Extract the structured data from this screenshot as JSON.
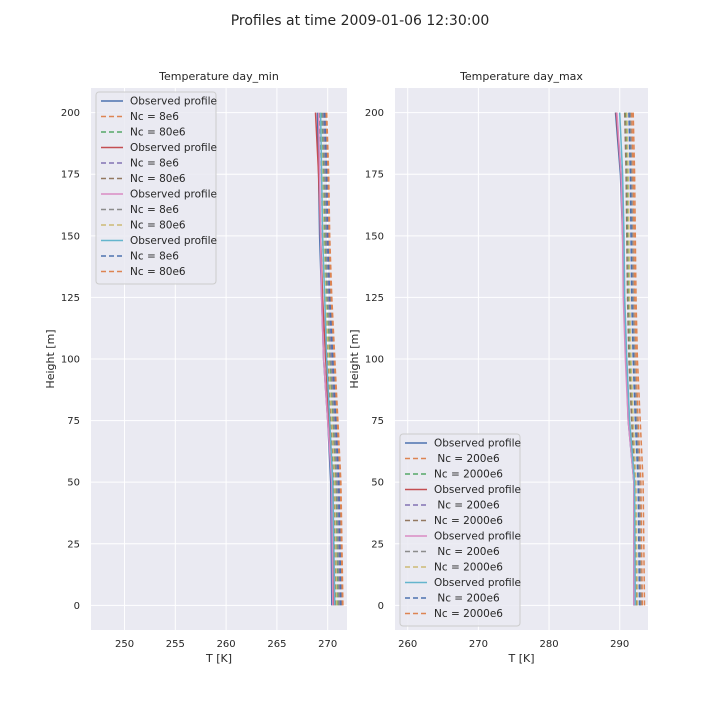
{
  "figure": {
    "title": "Profiles at time 2009-01-06 12:30:00",
    "background": "#ffffff",
    "panel_color": "#eaeaf2",
    "grid_color": "#ffffff"
  },
  "chart_data": [
    {
      "type": "line",
      "title": "Temperature day_min",
      "xlabel": "T [K]",
      "ylabel": "Height [m]",
      "xlim": [
        246.7,
        271.9
      ],
      "ylim": [
        -10,
        210
      ],
      "xticks": [
        "250",
        "255",
        "260",
        "265",
        "270"
      ],
      "yticks": [
        "0",
        "25",
        "50",
        "75",
        "100",
        "125",
        "150",
        "175",
        "200"
      ],
      "grid": true,
      "legend_position": "upper left",
      "series": [
        {
          "name": "Observed profile",
          "color": "#4c72b0",
          "dash": "solid",
          "x": [
            270.4,
            270.3,
            270.0,
            269.6,
            269.4,
            269.2,
            269.1,
            269.0
          ],
          "y": [
            0,
            50,
            75,
            100,
            125,
            150,
            175,
            200
          ]
        },
        {
          "name": "Nc = 8e6",
          "color": "#dd8452",
          "dash": "dashed",
          "x": [
            271.4,
            271.2,
            270.9,
            270.6,
            270.3,
            270.1,
            270.0,
            269.8
          ],
          "y": [
            0,
            50,
            75,
            100,
            125,
            150,
            175,
            200
          ]
        },
        {
          "name": "Nc = 80e6",
          "color": "#55a868",
          "dash": "dashed",
          "x": [
            271.0,
            270.8,
            270.5,
            270.2,
            269.9,
            269.7,
            269.6,
            269.4
          ],
          "y": [
            0,
            50,
            75,
            100,
            125,
            150,
            175,
            200
          ]
        },
        {
          "name": "Observed profile",
          "color": "#c44e52",
          "dash": "solid",
          "x": [
            270.6,
            270.5,
            270.1,
            269.8,
            269.5,
            269.3,
            269.1,
            268.8
          ],
          "y": [
            0,
            50,
            75,
            100,
            125,
            150,
            175,
            200
          ]
        },
        {
          "name": "Nc = 8e6",
          "color": "#8172b3",
          "dash": "dashed",
          "x": [
            271.2,
            271.0,
            270.7,
            270.4,
            270.1,
            269.9,
            269.8,
            269.6
          ],
          "y": [
            0,
            50,
            75,
            100,
            125,
            150,
            175,
            200
          ]
        },
        {
          "name": "Nc = 80e6",
          "color": "#937860",
          "dash": "dashed",
          "x": [
            270.8,
            270.6,
            270.3,
            270.0,
            269.7,
            269.5,
            269.4,
            269.2
          ],
          "y": [
            0,
            50,
            75,
            100,
            125,
            150,
            175,
            200
          ]
        },
        {
          "name": "Observed profile",
          "color": "#da8bc3",
          "dash": "solid",
          "x": [
            270.5,
            270.4,
            270.0,
            269.6,
            269.4,
            269.3,
            269.2,
            269.1
          ],
          "y": [
            0,
            50,
            75,
            100,
            125,
            150,
            175,
            200
          ]
        },
        {
          "name": "Nc = 8e6",
          "color": "#8c8c8c",
          "dash": "dashed",
          "x": [
            271.1,
            270.9,
            270.6,
            270.3,
            270.0,
            269.8,
            269.7,
            269.5
          ],
          "y": [
            0,
            50,
            75,
            100,
            125,
            150,
            175,
            200
          ]
        },
        {
          "name": "Nc = 80e6",
          "color": "#ccb974",
          "dash": "dashed",
          "x": [
            270.9,
            270.7,
            270.4,
            270.1,
            269.8,
            269.6,
            269.5,
            269.3
          ],
          "y": [
            0,
            50,
            75,
            100,
            125,
            150,
            175,
            200
          ]
        },
        {
          "name": "Observed profile",
          "color": "#64b5cd",
          "dash": "solid",
          "x": [
            270.7,
            270.5,
            270.2,
            269.9,
            269.7,
            269.5,
            269.4,
            269.3
          ],
          "y": [
            0,
            50,
            75,
            100,
            125,
            150,
            175,
            200
          ]
        },
        {
          "name": "Nc = 8e6",
          "color": "#4c72b0",
          "dash": "dashed",
          "x": [
            271.3,
            271.1,
            270.8,
            270.5,
            270.2,
            270.0,
            269.9,
            269.7
          ],
          "y": [
            0,
            50,
            75,
            100,
            125,
            150,
            175,
            200
          ]
        },
        {
          "name": "Nc = 80e6",
          "color": "#dd8452",
          "dash": "dashed",
          "x": [
            271.5,
            271.3,
            271.0,
            270.7,
            270.4,
            270.2,
            270.1,
            269.9
          ],
          "y": [
            0,
            50,
            75,
            100,
            125,
            150,
            175,
            200
          ]
        }
      ]
    },
    {
      "type": "line",
      "title": "Temperature day_max",
      "xlabel": "T [K]",
      "ylabel": "Height [m]",
      "xlim": [
        258.2,
        294.0
      ],
      "ylim": [
        -10,
        210
      ],
      "xticks": [
        "260",
        "270",
        "280",
        "290"
      ],
      "yticks": [
        "0",
        "25",
        "50",
        "75",
        "100",
        "125",
        "150",
        "175",
        "200"
      ],
      "grid": true,
      "legend_position": "lower left",
      "series": [
        {
          "name": "Observed profile",
          "color": "#4c72b0",
          "dash": "solid",
          "x": [
            292.0,
            292.0,
            291.2,
            290.9,
            290.6,
            290.4,
            290.1,
            289.4
          ],
          "y": [
            0,
            50,
            75,
            100,
            125,
            150,
            175,
            200
          ]
        },
        {
          "name": " Nc = 200e6",
          "color": "#dd8452",
          "dash": "dashed",
          "x": [
            293.2,
            293.0,
            292.6,
            292.3,
            292.1,
            292.0,
            291.9,
            291.7
          ],
          "y": [
            0,
            50,
            75,
            100,
            125,
            150,
            175,
            200
          ]
        },
        {
          "name": "Nc = 2000e6",
          "color": "#55a868",
          "dash": "dashed",
          "x": [
            292.4,
            292.2,
            291.8,
            291.5,
            291.3,
            291.2,
            291.1,
            290.9
          ],
          "y": [
            0,
            50,
            75,
            100,
            125,
            150,
            175,
            200
          ]
        },
        {
          "name": "Observed profile",
          "color": "#c44e52",
          "dash": "solid",
          "x": [
            292.1,
            292.1,
            291.3,
            290.9,
            290.6,
            290.5,
            290.2,
            289.5
          ],
          "y": [
            0,
            50,
            75,
            100,
            125,
            150,
            175,
            200
          ]
        },
        {
          "name": " Nc = 200e6",
          "color": "#8172b3",
          "dash": "dashed",
          "x": [
            292.9,
            292.7,
            292.3,
            292.0,
            291.8,
            291.7,
            291.6,
            291.4
          ],
          "y": [
            0,
            50,
            75,
            100,
            125,
            150,
            175,
            200
          ]
        },
        {
          "name": "Nc = 2000e6",
          "color": "#937860",
          "dash": "dashed",
          "x": [
            292.3,
            292.1,
            291.7,
            291.3,
            291.1,
            291.0,
            290.9,
            290.7
          ],
          "y": [
            0,
            50,
            75,
            100,
            125,
            150,
            175,
            200
          ]
        },
        {
          "name": "Observed profile",
          "color": "#da8bc3",
          "dash": "solid",
          "x": [
            292.0,
            292.0,
            291.2,
            290.8,
            290.5,
            290.4,
            290.2,
            289.6
          ],
          "y": [
            0,
            50,
            75,
            100,
            125,
            150,
            175,
            200
          ]
        },
        {
          "name": " Nc = 200e6",
          "color": "#8c8c8c",
          "dash": "dashed",
          "x": [
            293.0,
            292.8,
            292.4,
            292.1,
            291.9,
            291.8,
            291.7,
            291.5
          ],
          "y": [
            0,
            50,
            75,
            100,
            125,
            150,
            175,
            200
          ]
        },
        {
          "name": "Nc = 2000e6",
          "color": "#ccb974",
          "dash": "dashed",
          "x": [
            292.5,
            292.3,
            291.9,
            291.6,
            291.4,
            291.3,
            291.2,
            291.0
          ],
          "y": [
            0,
            50,
            75,
            100,
            125,
            150,
            175,
            200
          ]
        },
        {
          "name": "Observed profile",
          "color": "#64b5cd",
          "dash": "solid",
          "x": [
            292.2,
            292.1,
            291.4,
            291.0,
            290.7,
            290.6,
            290.4,
            290.0
          ],
          "y": [
            0,
            50,
            75,
            100,
            125,
            150,
            175,
            200
          ]
        },
        {
          "name": " Nc = 200e6",
          "color": "#4c72b0",
          "dash": "dashed",
          "x": [
            292.8,
            292.6,
            292.2,
            291.9,
            291.7,
            291.6,
            291.5,
            291.3
          ],
          "y": [
            0,
            50,
            75,
            100,
            125,
            150,
            175,
            200
          ]
        },
        {
          "name": "Nc = 2000e6",
          "color": "#dd8452",
          "dash": "dashed",
          "x": [
            293.5,
            293.3,
            292.9,
            292.5,
            292.3,
            292.2,
            292.1,
            291.9
          ],
          "y": [
            0,
            50,
            75,
            100,
            125,
            150,
            175,
            200
          ]
        }
      ]
    }
  ]
}
